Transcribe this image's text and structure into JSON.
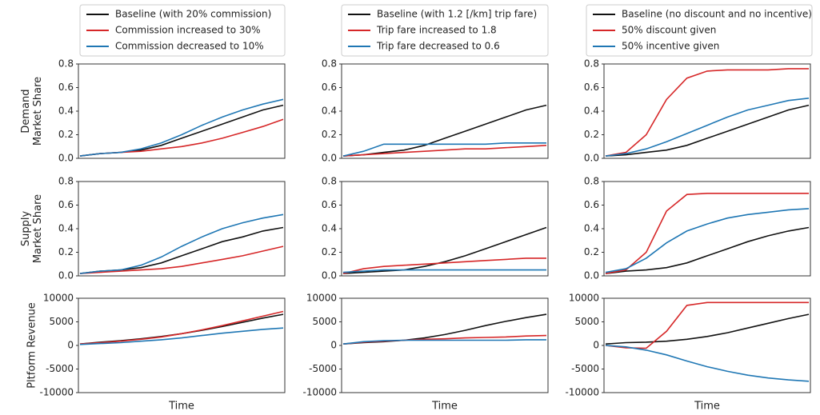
{
  "chart_data": [
    {
      "type": "line",
      "ylabel": [
        "Demand",
        "Market Share"
      ],
      "categories": [
        null,
        null,
        null,
        null,
        null,
        null,
        null,
        null,
        null,
        null,
        null
      ],
      "ylim": [
        0,
        0.8
      ],
      "yticks": [
        {
          "value": 0,
          "label": "0.0"
        },
        0.2,
        0.4,
        0.6,
        0.8
      ],
      "series": [
        {
          "name": "Baseline (with 20% commission)",
          "color": "#111111",
          "values": [
            0.02,
            0.04,
            0.05,
            0.07,
            0.11,
            0.17,
            0.23,
            0.29,
            0.35,
            0.41,
            0.45
          ]
        },
        {
          "name": "Commission increased to 30%",
          "color": "#d62728",
          "values": [
            0.02,
            0.04,
            0.05,
            0.06,
            0.08,
            0.1,
            0.13,
            0.17,
            0.22,
            0.27,
            0.33
          ]
        },
        {
          "name": "Commission decreased to 10%",
          "color": "#1f77b4",
          "values": [
            0.02,
            0.04,
            0.05,
            0.08,
            0.13,
            0.2,
            0.28,
            0.35,
            0.41,
            0.46,
            0.5
          ]
        }
      ]
    },
    {
      "type": "line",
      "categories": [
        null,
        null,
        null,
        null,
        null,
        null,
        null,
        null,
        null,
        null,
        null
      ],
      "ylim": [
        0,
        0.8
      ],
      "yticks": [
        {
          "value": 0,
          "label": "0.0"
        },
        0.2,
        0.4,
        0.6,
        0.8
      ],
      "series": [
        {
          "name": "Baseline (with 1.2 [/km] trip fare)",
          "color": "#111111",
          "values": [
            0.02,
            0.03,
            0.05,
            0.07,
            0.11,
            0.17,
            0.23,
            0.29,
            0.35,
            0.41,
            0.45
          ]
        },
        {
          "name": "Trip fare increased to 1.8",
          "color": "#d62728",
          "values": [
            0.02,
            0.03,
            0.04,
            0.05,
            0.06,
            0.07,
            0.08,
            0.08,
            0.09,
            0.1,
            0.11
          ]
        },
        {
          "name": "Trip fare decreased to 0.6",
          "color": "#1f77b4",
          "values": [
            0.02,
            0.06,
            0.12,
            0.12,
            0.12,
            0.12,
            0.12,
            0.12,
            0.13,
            0.13,
            0.13
          ]
        }
      ]
    },
    {
      "type": "line",
      "categories": [
        null,
        null,
        null,
        null,
        null,
        null,
        null,
        null,
        null,
        null,
        null
      ],
      "ylim": [
        0,
        0.8
      ],
      "yticks": [
        {
          "value": 0,
          "label": "0.0"
        },
        0.2,
        0.4,
        0.6,
        0.8
      ],
      "series": [
        {
          "name": "Baseline (no discount and no incentive)",
          "color": "#111111",
          "values": [
            0.02,
            0.03,
            0.05,
            0.07,
            0.11,
            0.17,
            0.23,
            0.29,
            0.35,
            0.41,
            0.45
          ]
        },
        {
          "name": "50% discount given",
          "color": "#d62728",
          "values": [
            0.02,
            0.05,
            0.2,
            0.5,
            0.68,
            0.74,
            0.75,
            0.75,
            0.75,
            0.76,
            0.76
          ]
        },
        {
          "name": "50% incentive given",
          "color": "#1f77b4",
          "values": [
            0.02,
            0.04,
            0.08,
            0.14,
            0.21,
            0.28,
            0.35,
            0.41,
            0.45,
            0.49,
            0.51
          ]
        }
      ]
    },
    {
      "type": "line",
      "ylabel": [
        "Supply",
        "Market Share"
      ],
      "categories": [
        null,
        null,
        null,
        null,
        null,
        null,
        null,
        null,
        null,
        null,
        null
      ],
      "ylim": [
        0,
        0.8
      ],
      "yticks": [
        {
          "value": 0,
          "label": "0.0"
        },
        0.2,
        0.4,
        0.6,
        0.8
      ],
      "series": [
        {
          "color": "#111111",
          "values": [
            0.02,
            0.04,
            0.05,
            0.07,
            0.11,
            0.17,
            0.23,
            0.29,
            0.33,
            0.38,
            0.41
          ]
        },
        {
          "color": "#d62728",
          "values": [
            0.02,
            0.03,
            0.04,
            0.05,
            0.06,
            0.08,
            0.11,
            0.14,
            0.17,
            0.21,
            0.25
          ]
        },
        {
          "color": "#1f77b4",
          "values": [
            0.02,
            0.04,
            0.05,
            0.09,
            0.16,
            0.25,
            0.33,
            0.4,
            0.45,
            0.49,
            0.52
          ]
        }
      ]
    },
    {
      "type": "line",
      "categories": [
        null,
        null,
        null,
        null,
        null,
        null,
        null,
        null,
        null,
        null,
        null
      ],
      "ylim": [
        0,
        0.8
      ],
      "yticks": [
        {
          "value": 0,
          "label": "0.0"
        },
        0.2,
        0.4,
        0.6,
        0.8
      ],
      "series": [
        {
          "color": "#111111",
          "values": [
            0.02,
            0.03,
            0.04,
            0.05,
            0.08,
            0.12,
            0.17,
            0.23,
            0.29,
            0.35,
            0.41
          ]
        },
        {
          "color": "#d62728",
          "values": [
            0.02,
            0.06,
            0.08,
            0.09,
            0.1,
            0.11,
            0.12,
            0.13,
            0.14,
            0.15,
            0.15
          ]
        },
        {
          "color": "#1f77b4",
          "values": [
            0.03,
            0.04,
            0.05,
            0.05,
            0.05,
            0.05,
            0.05,
            0.05,
            0.05,
            0.05,
            0.05
          ]
        }
      ]
    },
    {
      "type": "line",
      "categories": [
        null,
        null,
        null,
        null,
        null,
        null,
        null,
        null,
        null,
        null,
        null
      ],
      "ylim": [
        0,
        0.8
      ],
      "yticks": [
        {
          "value": 0,
          "label": "0.0"
        },
        0.2,
        0.4,
        0.6,
        0.8
      ],
      "series": [
        {
          "color": "#111111",
          "values": [
            0.02,
            0.04,
            0.05,
            0.07,
            0.11,
            0.17,
            0.23,
            0.29,
            0.34,
            0.38,
            0.41
          ]
        },
        {
          "color": "#d62728",
          "values": [
            0.02,
            0.05,
            0.2,
            0.55,
            0.69,
            0.7,
            0.7,
            0.7,
            0.7,
            0.7,
            0.7
          ]
        },
        {
          "color": "#1f77b4",
          "values": [
            0.03,
            0.06,
            0.15,
            0.28,
            0.38,
            0.44,
            0.49,
            0.52,
            0.54,
            0.56,
            0.57
          ]
        }
      ]
    },
    {
      "type": "line",
      "ylabel": [
        "Pltform Revenue"
      ],
      "xlabel": "Time",
      "categories": [
        null,
        null,
        null,
        null,
        null,
        null,
        null,
        null,
        null,
        null,
        null
      ],
      "ylim": [
        -10000,
        10000
      ],
      "yticks": [
        -10000,
        -5000,
        0,
        5000,
        10000
      ],
      "series": [
        {
          "color": "#111111",
          "values": [
            300,
            700,
            1000,
            1400,
            1900,
            2500,
            3200,
            4000,
            4900,
            5800,
            6600
          ]
        },
        {
          "color": "#d62728",
          "values": [
            300,
            600,
            900,
            1300,
            1800,
            2500,
            3300,
            4200,
            5200,
            6200,
            7200
          ]
        },
        {
          "color": "#1f77b4",
          "values": [
            200,
            400,
            600,
            900,
            1200,
            1600,
            2100,
            2600,
            3000,
            3400,
            3700
          ]
        }
      ]
    },
    {
      "type": "line",
      "xlabel": "Time",
      "categories": [
        null,
        null,
        null,
        null,
        null,
        null,
        null,
        null,
        null,
        null,
        null
      ],
      "ylim": [
        -10000,
        10000
      ],
      "yticks": [
        -10000,
        -5000,
        0,
        5000,
        10000
      ],
      "series": [
        {
          "color": "#111111",
          "values": [
            300,
            600,
            800,
            1100,
            1600,
            2300,
            3200,
            4200,
            5100,
            5900,
            6600
          ]
        },
        {
          "color": "#d62728",
          "values": [
            300,
            700,
            900,
            1100,
            1300,
            1400,
            1600,
            1700,
            1800,
            2000,
            2100
          ]
        },
        {
          "color": "#1f77b4",
          "values": [
            300,
            800,
            1000,
            1100,
            1100,
            1100,
            1100,
            1100,
            1100,
            1200,
            1200
          ]
        }
      ]
    },
    {
      "type": "line",
      "xlabel": "Time",
      "categories": [
        null,
        null,
        null,
        null,
        null,
        null,
        null,
        null,
        null,
        null,
        null
      ],
      "ylim": [
        -10000,
        10000
      ],
      "yticks": [
        -10000,
        -5000,
        0,
        5000,
        10000
      ],
      "series": [
        {
          "color": "#111111",
          "values": [
            300,
            600,
            700,
            900,
            1300,
            1900,
            2700,
            3700,
            4700,
            5700,
            6600
          ]
        },
        {
          "color": "#d62728",
          "values": [
            0,
            -500,
            -600,
            3000,
            8500,
            9100,
            9100,
            9100,
            9100,
            9100,
            9100
          ]
        },
        {
          "color": "#1f77b4",
          "values": [
            0,
            -300,
            -1000,
            -2000,
            -3300,
            -4500,
            -5500,
            -6300,
            -6900,
            -7300,
            -7600
          ]
        }
      ]
    }
  ]
}
